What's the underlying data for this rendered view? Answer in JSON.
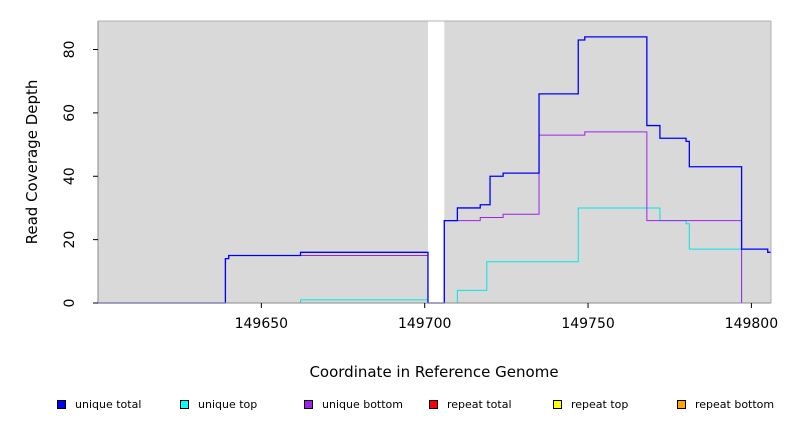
{
  "chart_data": {
    "type": "line",
    "title": "",
    "xlabel": "Coordinate in Reference Genome",
    "ylabel": "Read Coverage Depth",
    "xlim": [
      149600,
      149806
    ],
    "ylim": [
      0,
      89
    ],
    "x_ticks": [
      149650,
      149700,
      149750,
      149800
    ],
    "x_tick_labels": [
      "149650",
      "149700",
      "149750",
      "149800"
    ],
    "y_ticks": [
      0,
      20,
      40,
      60,
      80
    ],
    "y_tick_labels": [
      "0",
      "20",
      "40",
      "60",
      "80"
    ],
    "grid": false,
    "legend_position": "bottom",
    "background_color": "#d9d9d9",
    "gaps": [
      [
        149701,
        149706
      ]
    ],
    "series": [
      {
        "name": "unique total",
        "color": "#0000ff",
        "points": [
          [
            149600,
            0
          ],
          [
            149639,
            0
          ],
          [
            149639,
            14
          ],
          [
            149640,
            14
          ],
          [
            149640,
            15
          ],
          [
            149662,
            15
          ],
          [
            149662,
            16
          ],
          [
            149701,
            16
          ],
          [
            149701,
            0
          ],
          [
            149706,
            0
          ],
          [
            149706,
            26
          ],
          [
            149710,
            26
          ],
          [
            149710,
            30
          ],
          [
            149717,
            30
          ],
          [
            149717,
            31
          ],
          [
            149720,
            31
          ],
          [
            149720,
            40
          ],
          [
            149724,
            40
          ],
          [
            149724,
            41
          ],
          [
            149735,
            41
          ],
          [
            149735,
            66
          ],
          [
            149747,
            66
          ],
          [
            149747,
            83
          ],
          [
            149749,
            83
          ],
          [
            149749,
            84
          ],
          [
            149768,
            84
          ],
          [
            149768,
            56
          ],
          [
            149772,
            56
          ],
          [
            149772,
            52
          ],
          [
            149780,
            52
          ],
          [
            149780,
            51
          ],
          [
            149781,
            51
          ],
          [
            149781,
            43
          ],
          [
            149797,
            43
          ],
          [
            149797,
            17
          ],
          [
            149805,
            17
          ],
          [
            149805,
            16
          ],
          [
            149806,
            16
          ]
        ]
      },
      {
        "name": "unique top",
        "color": "#00e5e5",
        "points": [
          [
            149600,
            0
          ],
          [
            149662,
            0
          ],
          [
            149662,
            1
          ],
          [
            149701,
            1
          ],
          [
            149701,
            0
          ],
          [
            149710,
            0
          ],
          [
            149710,
            4
          ],
          [
            149719,
            4
          ],
          [
            149719,
            13
          ],
          [
            149747,
            13
          ],
          [
            149747,
            30
          ],
          [
            149772,
            30
          ],
          [
            149772,
            26
          ],
          [
            149780,
            26
          ],
          [
            149780,
            25
          ],
          [
            149781,
            25
          ],
          [
            149781,
            17
          ],
          [
            149797,
            17
          ],
          [
            149797,
            0
          ],
          [
            149806,
            0
          ]
        ]
      },
      {
        "name": "unique bottom",
        "color": "#a020f0",
        "points": [
          [
            149600,
            0
          ],
          [
            149639,
            0
          ],
          [
            149639,
            14
          ],
          [
            149640,
            14
          ],
          [
            149640,
            15
          ],
          [
            149701,
            15
          ],
          [
            149701,
            0
          ],
          [
            149706,
            0
          ],
          [
            149706,
            26
          ],
          [
            149717,
            26
          ],
          [
            149717,
            27
          ],
          [
            149724,
            27
          ],
          [
            149724,
            28
          ],
          [
            149735,
            28
          ],
          [
            149735,
            53
          ],
          [
            149749,
            53
          ],
          [
            149749,
            54
          ],
          [
            149768,
            54
          ],
          [
            149768,
            26
          ],
          [
            149797,
            26
          ],
          [
            149797,
            0
          ],
          [
            149806,
            0
          ]
        ]
      },
      {
        "name": "repeat total",
        "color": "#ff0000",
        "points": [
          [
            149600,
            0
          ],
          [
            149806,
            0
          ]
        ]
      },
      {
        "name": "repeat top",
        "color": "#ffff00",
        "points": [
          [
            149600,
            0
          ],
          [
            149806,
            0
          ]
        ]
      },
      {
        "name": "repeat bottom",
        "color": "#ffa500",
        "points": [
          [
            149600,
            0
          ],
          [
            149806,
            0
          ]
        ]
      }
    ]
  },
  "legend": {
    "items": [
      {
        "label": "unique total",
        "color": "#0000ff"
      },
      {
        "label": "unique top",
        "color": "#00ffff"
      },
      {
        "label": "unique bottom",
        "color": "#a020f0"
      },
      {
        "label": "repeat total",
        "color": "#ff0000"
      },
      {
        "label": "repeat top",
        "color": "#ffff00"
      },
      {
        "label": "repeat bottom",
        "color": "#ffa500"
      }
    ]
  }
}
